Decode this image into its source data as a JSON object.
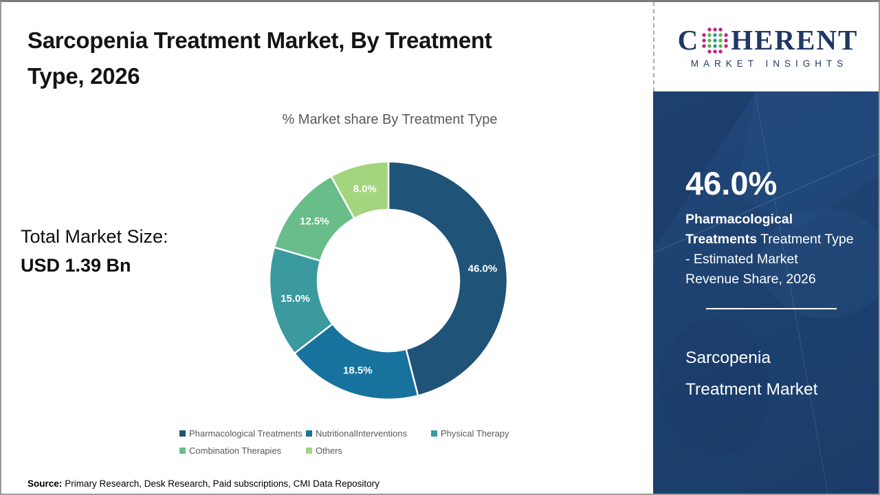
{
  "header": {
    "title_lines": [
      "Sarcopenia Treatment Market, By Treatment",
      "Type, 2026"
    ]
  },
  "logo": {
    "name": "Coherent Market Insights",
    "word_prefix": "C",
    "word_suffix": "HERENT",
    "subtitle": "MARKET INSIGHTS",
    "navy_color": "#1f3864",
    "dot_outer_color": "#c0267e",
    "dot_teal_color": "#2a9a9b",
    "dot_green_color": "#5cb646"
  },
  "left_stat": {
    "label": "Total Market Size:",
    "value": "USD 1.39 Bn"
  },
  "chart_data": {
    "type": "pie",
    "donut": true,
    "title": "% Market share By Treatment Type",
    "categories": [
      "Pharmacological Treatments",
      "NutritionalInterventions",
      "Physical Therapy",
      "Combination Therapies",
      "Others"
    ],
    "values": [
      46.0,
      18.5,
      15.0,
      12.5,
      8.0
    ],
    "labels": [
      "46.0%",
      "18.5%",
      "15.0%",
      "12.5%",
      "8.0%"
    ],
    "colors": [
      "#1f5378",
      "#17739e",
      "#3a9a9e",
      "#68bd88",
      "#a3d57e"
    ],
    "legend_position": "bottom",
    "start_angle_deg": 0,
    "direction": "clockwise"
  },
  "source": {
    "label": "Source:",
    "text": "Primary Research, Desk Research, Paid subscriptions, CMI Data Repository"
  },
  "right_panel": {
    "bg_color": "#1d4270",
    "highlight_value": "46.0%",
    "highlight_bold": "Pharmacological Treatments",
    "highlight_rest": " Treatment Type - Estimated Market Revenue Share, 2026",
    "market_line1": "Sarcopenia",
    "market_line2": "Treatment Market"
  }
}
